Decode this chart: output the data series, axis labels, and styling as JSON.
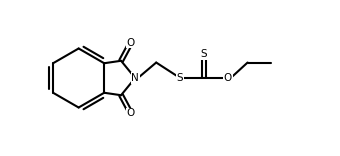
{
  "bg_color": "#ffffff",
  "line_color": "#000000",
  "line_width": 1.5,
  "fig_width": 3.4,
  "fig_height": 1.56,
  "dpi": 100,
  "font_size": 7.5,
  "xlim": [
    0.0,
    10.5
  ],
  "ylim": [
    0.0,
    5.5
  ]
}
